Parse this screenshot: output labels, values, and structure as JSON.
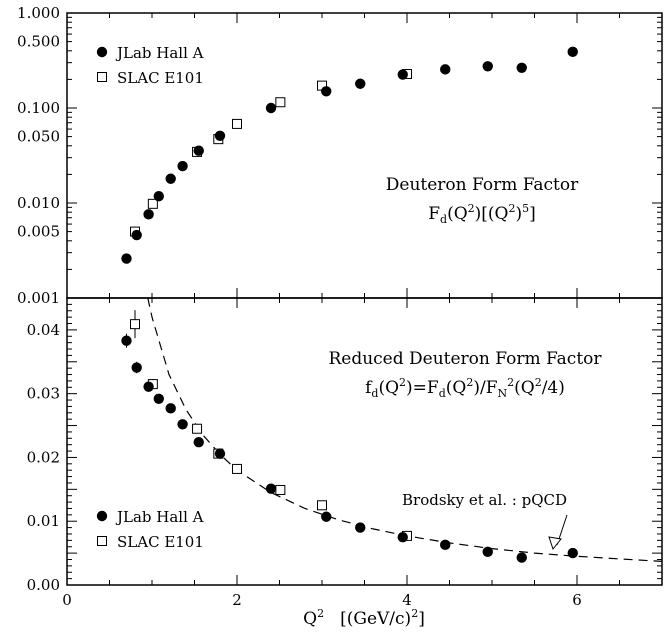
{
  "chart_data": [
    {
      "type": "scatter",
      "panel": "top",
      "yscale": "log",
      "xlim": [
        0,
        7
      ],
      "ylim": [
        0.001,
        1.0
      ],
      "ytick_labels": [
        "1.000",
        "0.500",
        "0.100",
        "0.050",
        "0.010",
        "0.005",
        "0.001"
      ],
      "yticks": [
        1.0,
        0.5,
        0.1,
        0.05,
        0.01,
        0.005,
        0.001
      ],
      "annotation": {
        "line1": "Deuteron Form Factor",
        "line2_main": "F",
        "line2_sub": "d",
        "line2_rest_a": "(Q",
        "line2_sup1": "2",
        "line2_rest_b": ")[(Q",
        "line2_sup2": "2",
        "line2_rest_c": ")",
        "line2_sup3": "5",
        "line2_rest_d": "]"
      },
      "legend_position": "top-left",
      "series": [
        {
          "name": "JLab Hall A",
          "marker": "filled-circle",
          "x": [
            0.7,
            0.82,
            0.96,
            1.08,
            1.22,
            1.36,
            1.55,
            1.8,
            2.4,
            3.05,
            3.45,
            3.95,
            4.45,
            4.95,
            5.35,
            5.95
          ],
          "y": [
            0.0026,
            0.0046,
            0.0076,
            0.0118,
            0.018,
            0.0245,
            0.0355,
            0.051,
            0.1,
            0.15,
            0.18,
            0.225,
            0.255,
            0.275,
            0.265,
            0.39
          ],
          "yerr": [
            0,
            0,
            0,
            0,
            0,
            0,
            0,
            0,
            0,
            0,
            0,
            0,
            0,
            0,
            0,
            0.045
          ]
        },
        {
          "name": "SLAC E101",
          "marker": "open-square",
          "x": [
            0.8,
            1.01,
            1.53,
            1.78,
            2.0,
            2.51,
            3.0,
            4.0
          ],
          "y": [
            0.005,
            0.0098,
            0.0345,
            0.047,
            0.068,
            0.115,
            0.172,
            0.228
          ]
        }
      ]
    },
    {
      "type": "scatter",
      "panel": "bottom",
      "xlim": [
        0,
        7
      ],
      "ylim": [
        0,
        0.045
      ],
      "xlabel_main": "Q",
      "xlabel_sup": "2",
      "xlabel_rest": "[(GeV/c)",
      "xlabel_sup2": "2",
      "xlabel_end": "]",
      "xticks": [
        0,
        2,
        4,
        6
      ],
      "xtick_labels": [
        "0",
        "2",
        "4",
        "6"
      ],
      "yticks": [
        0,
        0.01,
        0.02,
        0.03,
        0.04
      ],
      "ytick_labels": [
        "0.00",
        "0.01",
        "0.02",
        "0.03",
        "0.04"
      ],
      "annotation": {
        "line1": "Reduced Deuteron Form Factor",
        "f": "f",
        "f_sub": "d",
        "q1": "(Q",
        "q1_sup": "2",
        "eq": ")=F",
        "F_sub": "d",
        "q2": "(Q",
        "q2_sup": "2",
        "slash": ")/F",
        "FN_sub": "N",
        "FN_sup": "2",
        "q3": "(Q",
        "q3_sup": "2",
        "q3_end": "/4)"
      },
      "curve_label": "Brodsky et al. : pQCD",
      "legend_position": "bottom-left",
      "series": [
        {
          "name": "JLab Hall A",
          "marker": "filled-circle",
          "x": [
            0.7,
            0.82,
            0.96,
            1.08,
            1.22,
            1.36,
            1.55,
            1.8,
            2.4,
            3.05,
            3.45,
            3.95,
            4.45,
            4.95,
            5.35,
            5.95
          ],
          "y": [
            0.0383,
            0.0341,
            0.0311,
            0.0292,
            0.0277,
            0.0252,
            0.0224,
            0.0206,
            0.0151,
            0.0107,
            0.009,
            0.0075,
            0.0063,
            0.0052,
            0.0043,
            0.005
          ],
          "yerr": [
            0.0011,
            0.0009,
            0.0008,
            0.0006,
            0.0006,
            0.0005,
            0.0005,
            0.0005,
            0.0004,
            0.0004,
            0.0003,
            0.0003,
            0.0003,
            0.0003,
            0.0003,
            0.0006
          ]
        },
        {
          "name": "SLAC E101",
          "marker": "open-square",
          "x": [
            0.8,
            1.01,
            1.53,
            1.78,
            2.0,
            2.51,
            3.0,
            4.0
          ],
          "y": [
            0.0409,
            0.0315,
            0.0245,
            0.0206,
            0.0182,
            0.0149,
            0.0125,
            0.0077
          ],
          "yerr": [
            0.0022,
            0.0008,
            0.0006,
            0.0005,
            0.0004,
            0.0004,
            0.0006,
            0.0003
          ]
        },
        {
          "name": "Brodsky et al. : pQCD",
          "style": "dashed-line",
          "x": [
            0.95,
            1.0,
            1.2,
            1.4,
            1.6,
            1.8,
            2.0,
            2.4,
            2.8,
            3.2,
            3.6,
            4.0,
            4.5,
            5.0,
            5.5,
            6.0,
            6.5,
            7.0
          ],
          "y": [
            0.045,
            0.042,
            0.033,
            0.0275,
            0.0235,
            0.0205,
            0.018,
            0.0145,
            0.012,
            0.0102,
            0.0088,
            0.0077,
            0.0066,
            0.0057,
            0.005,
            0.0045,
            0.0041,
            0.0037
          ]
        }
      ]
    }
  ]
}
